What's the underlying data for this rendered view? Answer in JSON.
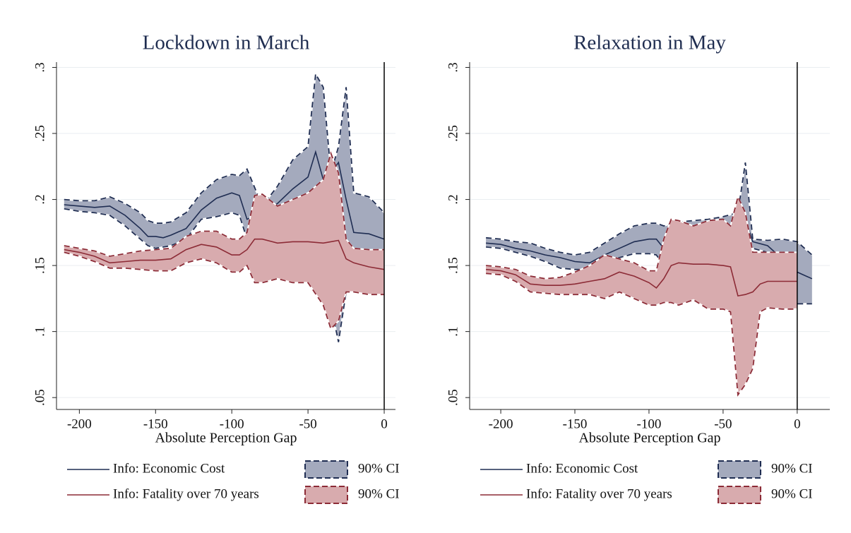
{
  "chart_data": [
    {
      "type": "line",
      "title": "Lockdown in March",
      "x_label": "Absolute Perception Gap",
      "xlim": [
        -215,
        7.4
      ],
      "ylim": [
        0.041,
        0.304
      ],
      "xticks": [
        -200,
        -150,
        -100,
        -50,
        0
      ],
      "yticks": [
        {
          "value": 0.05,
          "label": ".05"
        },
        {
          "value": 0.1,
          "label": ".1"
        },
        {
          "value": 0.15,
          "label": ".15"
        },
        {
          "value": 0.2,
          "label": ".2"
        },
        {
          "value": 0.25,
          "label": ".25"
        },
        {
          "value": 0.3,
          "label": ".3"
        }
      ],
      "grid": true,
      "vline_x": 0,
      "series": [
        {
          "name": "Info: Economic Cost",
          "color": "#1f2d52",
          "x": [
            -210,
            -200,
            -190,
            -180,
            -170,
            -160,
            -155,
            -150,
            -145,
            -140,
            -130,
            -120,
            -110,
            -100,
            -95,
            -90,
            -80,
            -70,
            -60,
            -50,
            -45,
            -40,
            -35,
            -30,
            -25,
            -20,
            -10,
            0
          ],
          "values": [
            0.196,
            0.195,
            0.194,
            0.195,
            0.188,
            0.178,
            0.172,
            0.172,
            0.171,
            0.173,
            0.178,
            0.192,
            0.201,
            0.205,
            0.203,
            0.185,
            0.19,
            0.197,
            0.208,
            0.217,
            0.236,
            0.215,
            0.22,
            0.228,
            0.2,
            0.175,
            0.174,
            0.17
          ],
          "ci": {
            "name": "90% CI",
            "fill": "#a4aabd",
            "upper": [
              0.2,
              0.199,
              0.199,
              0.202,
              0.197,
              0.19,
              0.184,
              0.182,
              0.182,
              0.183,
              0.19,
              0.205,
              0.215,
              0.219,
              0.218,
              0.223,
              0.195,
              0.21,
              0.23,
              0.24,
              0.295,
              0.285,
              0.22,
              0.24,
              0.285,
              0.205,
              0.202,
              0.19
            ],
            "lower": [
              0.193,
              0.191,
              0.19,
              0.188,
              0.18,
              0.17,
              0.165,
              0.163,
              0.164,
              0.165,
              0.17,
              0.185,
              0.187,
              0.19,
              0.188,
              0.17,
              0.18,
              0.195,
              0.19,
              0.19,
              0.17,
              0.14,
              0.12,
              0.092,
              0.13,
              0.15,
              0.155,
              0.15
            ]
          }
        },
        {
          "name": "Info: Fatality over 70 years",
          "color": "#8c2b36",
          "x": [
            -210,
            -200,
            -190,
            -180,
            -170,
            -160,
            -150,
            -140,
            -130,
            -120,
            -110,
            -100,
            -95,
            -90,
            -85,
            -80,
            -70,
            -60,
            -50,
            -40,
            -35,
            -30,
            -25,
            -20,
            -10,
            0
          ],
          "values": [
            0.162,
            0.16,
            0.157,
            0.152,
            0.153,
            0.154,
            0.154,
            0.155,
            0.162,
            0.166,
            0.164,
            0.158,
            0.158,
            0.162,
            0.17,
            0.17,
            0.167,
            0.168,
            0.168,
            0.167,
            0.168,
            0.169,
            0.155,
            0.152,
            0.149,
            0.147
          ],
          "ci": {
            "name": "90% CI",
            "fill": "#d8abae",
            "upper": [
              0.165,
              0.163,
              0.161,
              0.157,
              0.159,
              0.161,
              0.162,
              0.163,
              0.172,
              0.176,
              0.176,
              0.17,
              0.17,
              0.175,
              0.203,
              0.204,
              0.195,
              0.2,
              0.205,
              0.215,
              0.235,
              0.22,
              0.17,
              0.163,
              0.162,
              0.162
            ],
            "lower": [
              0.16,
              0.157,
              0.153,
              0.148,
              0.148,
              0.147,
              0.146,
              0.146,
              0.152,
              0.155,
              0.152,
              0.145,
              0.145,
              0.15,
              0.137,
              0.137,
              0.14,
              0.137,
              0.137,
              0.12,
              0.102,
              0.108,
              0.13,
              0.13,
              0.128,
              0.128
            ]
          }
        }
      ]
    },
    {
      "type": "line",
      "title": "Relaxation in May",
      "x_label": "Absolute Perception Gap",
      "xlim": [
        -221,
        22
      ],
      "ylim": [
        0.041,
        0.304
      ],
      "xticks": [
        -200,
        -150,
        -100,
        -50,
        0
      ],
      "yticks": [
        {
          "value": 0.05,
          "label": ".05"
        },
        {
          "value": 0.1,
          "label": ".1"
        },
        {
          "value": 0.15,
          "label": ".15"
        },
        {
          "value": 0.2,
          "label": ".2"
        },
        {
          "value": 0.25,
          "label": ".25"
        },
        {
          "value": 0.3,
          "label": ".3"
        }
      ],
      "grid": true,
      "vline_x": 0,
      "series": [
        {
          "name": "Info: Economic Cost",
          "color": "#1f2d52",
          "x": [
            -210,
            -200,
            -190,
            -180,
            -170,
            -160,
            -150,
            -140,
            -130,
            -120,
            -110,
            -100,
            -95,
            -90,
            -80,
            -70,
            -60,
            -50,
            -40,
            -35,
            -30,
            -20,
            -10,
            0,
            10
          ],
          "values": [
            0.167,
            0.166,
            0.163,
            0.161,
            0.158,
            0.156,
            0.153,
            0.152,
            0.158,
            0.163,
            0.168,
            0.17,
            0.17,
            0.163,
            0.165,
            0.168,
            0.17,
            0.172,
            0.175,
            0.185,
            0.168,
            0.165,
            0.155,
            0.145,
            0.14
          ],
          "ci": {
            "name": "90% CI",
            "fill": "#a4aabd",
            "upper": [
              0.171,
              0.17,
              0.168,
              0.167,
              0.163,
              0.16,
              0.158,
              0.16,
              0.167,
              0.174,
              0.18,
              0.182,
              0.182,
              0.18,
              0.183,
              0.184,
              0.185,
              0.187,
              0.19,
              0.228,
              0.17,
              0.169,
              0.17,
              0.168,
              0.158
            ],
            "lower": [
              0.164,
              0.163,
              0.16,
              0.157,
              0.153,
              0.148,
              0.147,
              0.147,
              0.152,
              0.156,
              0.159,
              0.159,
              0.158,
              0.15,
              0.15,
              0.153,
              0.155,
              0.158,
              0.16,
              0.165,
              0.163,
              0.16,
              0.16,
              0.121,
              0.121
            ]
          }
        },
        {
          "name": "Info: Fatality over 70 years",
          "color": "#8c2b36",
          "x": [
            -210,
            -200,
            -190,
            -180,
            -170,
            -160,
            -150,
            -140,
            -130,
            -120,
            -110,
            -100,
            -95,
            -90,
            -85,
            -80,
            -70,
            -60,
            -50,
            -45,
            -40,
            -35,
            -30,
            -25,
            -20,
            -10,
            0
          ],
          "values": [
            0.147,
            0.146,
            0.143,
            0.136,
            0.135,
            0.135,
            0.136,
            0.138,
            0.14,
            0.145,
            0.142,
            0.137,
            0.133,
            0.14,
            0.15,
            0.152,
            0.151,
            0.151,
            0.15,
            0.149,
            0.127,
            0.128,
            0.13,
            0.136,
            0.138,
            0.138,
            0.138
          ],
          "ci": {
            "name": "90% CI",
            "fill": "#d8abae",
            "upper": [
              0.15,
              0.149,
              0.147,
              0.142,
              0.14,
              0.141,
              0.145,
              0.15,
              0.158,
              0.155,
              0.152,
              0.146,
              0.146,
              0.17,
              0.185,
              0.184,
              0.18,
              0.184,
              0.185,
              0.18,
              0.202,
              0.19,
              0.16,
              0.16,
              0.16,
              0.16,
              0.16
            ],
            "lower": [
              0.144,
              0.143,
              0.138,
              0.13,
              0.129,
              0.128,
              0.128,
              0.128,
              0.125,
              0.13,
              0.125,
              0.12,
              0.12,
              0.122,
              0.122,
              0.12,
              0.124,
              0.117,
              0.117,
              0.115,
              0.052,
              0.06,
              0.072,
              0.115,
              0.118,
              0.117,
              0.117
            ]
          }
        }
      ]
    }
  ]
}
